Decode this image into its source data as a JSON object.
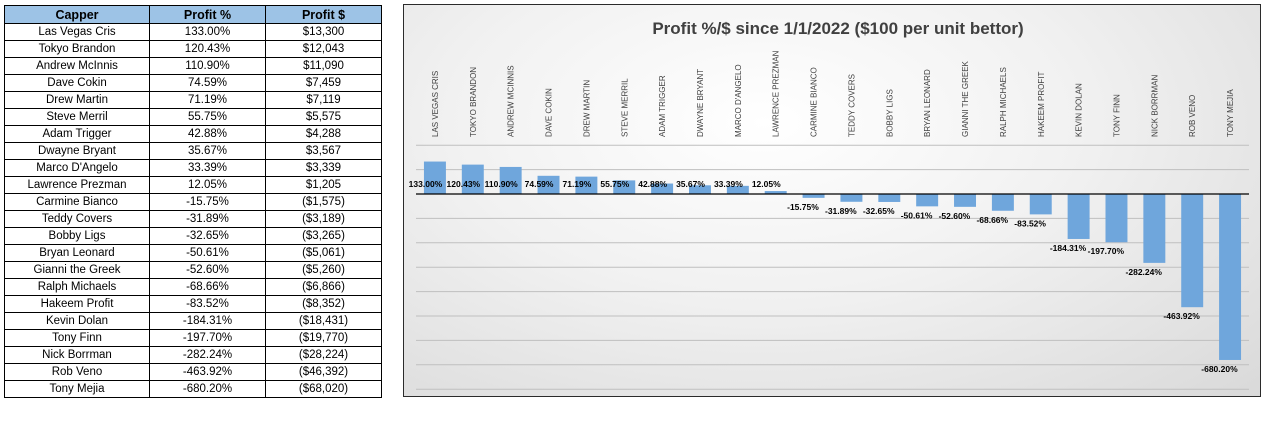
{
  "table": {
    "headers": [
      "Capper",
      "Profit %",
      "Profit $"
    ],
    "rows": [
      [
        "Las Vegas Cris",
        "133.00%",
        "$13,300"
      ],
      [
        "Tokyo Brandon",
        "120.43%",
        "$12,043"
      ],
      [
        "Andrew McInnis",
        "110.90%",
        "$11,090"
      ],
      [
        "Dave Cokin",
        "74.59%",
        "$7,459"
      ],
      [
        "Drew Martin",
        "71.19%",
        "$7,119"
      ],
      [
        "Steve Merril",
        "55.75%",
        "$5,575"
      ],
      [
        "Adam Trigger",
        "42.88%",
        "$4,288"
      ],
      [
        "Dwayne Bryant",
        "35.67%",
        "$3,567"
      ],
      [
        "Marco D'Angelo",
        "33.39%",
        "$3,339"
      ],
      [
        "Lawrence Prezman",
        "12.05%",
        "$1,205"
      ],
      [
        "Carmine Bianco",
        "-15.75%",
        "($1,575)"
      ],
      [
        "Teddy Covers",
        "-31.89%",
        "($3,189)"
      ],
      [
        "Bobby Ligs",
        "-32.65%",
        "($3,265)"
      ],
      [
        "Bryan Leonard",
        "-50.61%",
        "($5,061)"
      ],
      [
        "Gianni the Greek",
        "-52.60%",
        "($5,260)"
      ],
      [
        "Ralph Michaels",
        "-68.66%",
        "($6,866)"
      ],
      [
        "Hakeem Profit",
        "-83.52%",
        "($8,352)"
      ],
      [
        "Kevin Dolan",
        "-184.31%",
        "($18,431)"
      ],
      [
        "Tony Finn",
        "-197.70%",
        "($19,770)"
      ],
      [
        "Nick Borrman",
        "-282.24%",
        "($28,224)"
      ],
      [
        "Rob Veno",
        "-463.92%",
        "($46,392)"
      ],
      [
        "Tony Mejia",
        "-680.20%",
        "($68,020)"
      ]
    ]
  },
  "chart_data": {
    "type": "bar",
    "title": "Profit %/$ since 1/1/2022 ($100 per unit bettor)",
    "categories": [
      "LAS VEGAS CRIS",
      "TOKYO BRANDON",
      "ANDREW MCINNIS",
      "DAVE COKIN",
      "DREW MARTIN",
      "STEVE MERRIL",
      "ADAM TRIGGER",
      "DWAYNE BRYANT",
      "MARCO D'ANGELO",
      "LAWRENCE PREZMAN",
      "CARMINE BIANCO",
      "TEDDY COVERS",
      "BOBBY LIGS",
      "BRYAN LEONARD",
      "GIANNI THE GREEK",
      "RALPH MICHAELS",
      "HAKEEM PROFIT",
      "KEVIN DOLAN",
      "TONY FINN",
      "NICK BORRMAN",
      "ROB VENO",
      "TONY MEJIA"
    ],
    "values": [
      133.0,
      120.43,
      110.9,
      74.59,
      71.19,
      55.75,
      42.88,
      35.67,
      33.39,
      12.05,
      -15.75,
      -31.89,
      -32.65,
      -50.61,
      -52.6,
      -68.66,
      -83.52,
      -184.31,
      -197.7,
      -282.24,
      -463.92,
      -680.2
    ],
    "data_labels": [
      "133.00%",
      "120.43%",
      "110.90%",
      "74.59%",
      "71.19%",
      "55.75%",
      "42.88%",
      "35.67%",
      "33.39%",
      "12.05%",
      "-15.75%",
      "-31.89%",
      "-32.65%",
      "-50.61%",
      "-52.60%",
      "-68.66%",
      "-83.52%",
      "-184.31%",
      "-197.70%",
      "-282.24%",
      "-463.92%",
      "-680.20%"
    ],
    "ylim": [
      -800,
      200
    ],
    "y_gridline_step": 100,
    "grid": true,
    "xlabel": "",
    "ylabel": "",
    "bar_color": "#6fa6dc",
    "header_color": "#9dc3e6"
  }
}
